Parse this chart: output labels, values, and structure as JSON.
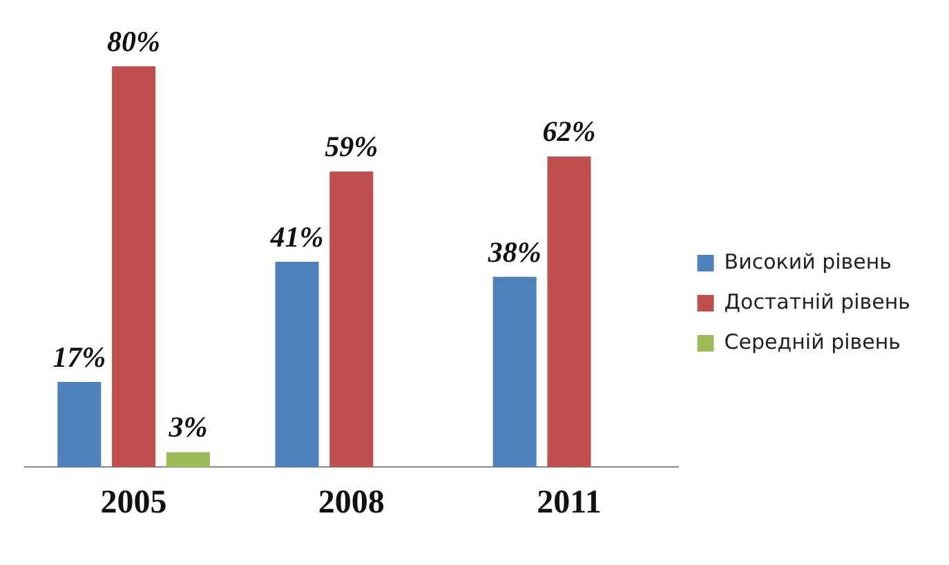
{
  "chart_data": {
    "type": "bar",
    "categories": [
      "2005",
      "2008",
      "2011"
    ],
    "series": [
      {
        "name": "Високий рівень",
        "color": "#4f81bd",
        "values": [
          17,
          41,
          38
        ],
        "value_labels": [
          "17%",
          "41%",
          "38%"
        ]
      },
      {
        "name": "Достатній рівень",
        "color": "#c0504d",
        "values": [
          80,
          59,
          62
        ],
        "value_labels": [
          "80%",
          "59%",
          "62%"
        ]
      },
      {
        "name": "Середній рівень",
        "color": "#9bbb59",
        "values": [
          3,
          null,
          null
        ],
        "value_labels": [
          "3%",
          null,
          null
        ]
      }
    ],
    "legend": "right",
    "grid": false
  }
}
